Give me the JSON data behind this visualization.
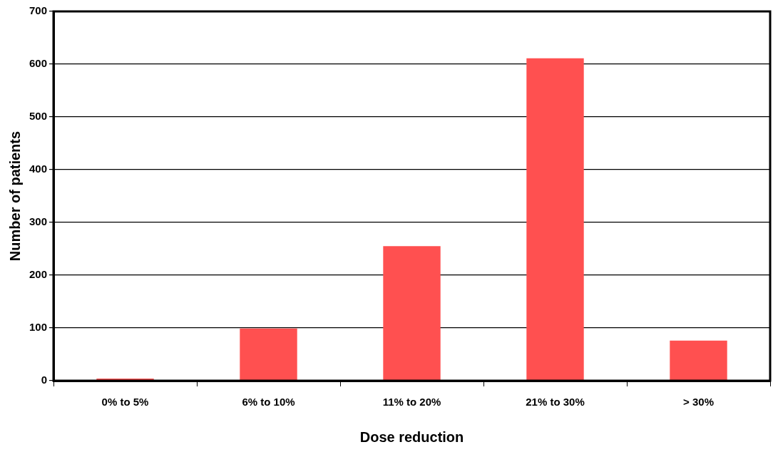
{
  "chart_data": {
    "type": "bar",
    "xlabel": "Dose reduction",
    "ylabel": "Number of patients",
    "categories": [
      "0% to 5%",
      "6% to 10%",
      "11% to 20%",
      "21% to 30%",
      "> 30%"
    ],
    "values": [
      4,
      99,
      255,
      611,
      76
    ],
    "color": "#ff5050",
    "ylim": [
      0,
      700
    ],
    "yticks": [
      0,
      100,
      200,
      300,
      400,
      500,
      600,
      700
    ],
    "grid": "y",
    "legend": false
  }
}
